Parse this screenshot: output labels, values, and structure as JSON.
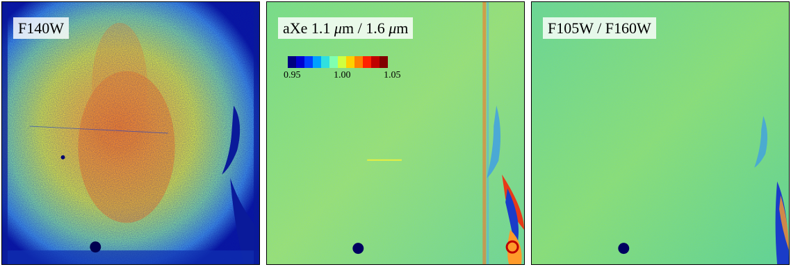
{
  "panels": [
    {
      "label": "F140W"
    },
    {
      "label_prefix": "aXe 1.1 ",
      "unit": "μ",
      "label_middle": "m / 1.6 ",
      "unit2": "μ",
      "label_suffix": "m"
    },
    {
      "label": "F105W / F160W"
    }
  ],
  "colorbar": {
    "colors": [
      "#000080",
      "#0000d0",
      "#0040ff",
      "#00a0ff",
      "#30e0e0",
      "#80ffb0",
      "#d0ff40",
      "#ffd000",
      "#ff8000",
      "#ff2000",
      "#c00000",
      "#800000"
    ],
    "tick_labels": [
      "0.95",
      "1.00",
      "1.05"
    ],
    "min": 0.95,
    "max": 1.05
  },
  "palette": {
    "background_green": "#60dc78",
    "deep_blue": "#000070",
    "mid_blue": "#1a3cc8",
    "orange": "#ff9a2a",
    "red": "#e83a18",
    "yellow": "#e8f040"
  }
}
